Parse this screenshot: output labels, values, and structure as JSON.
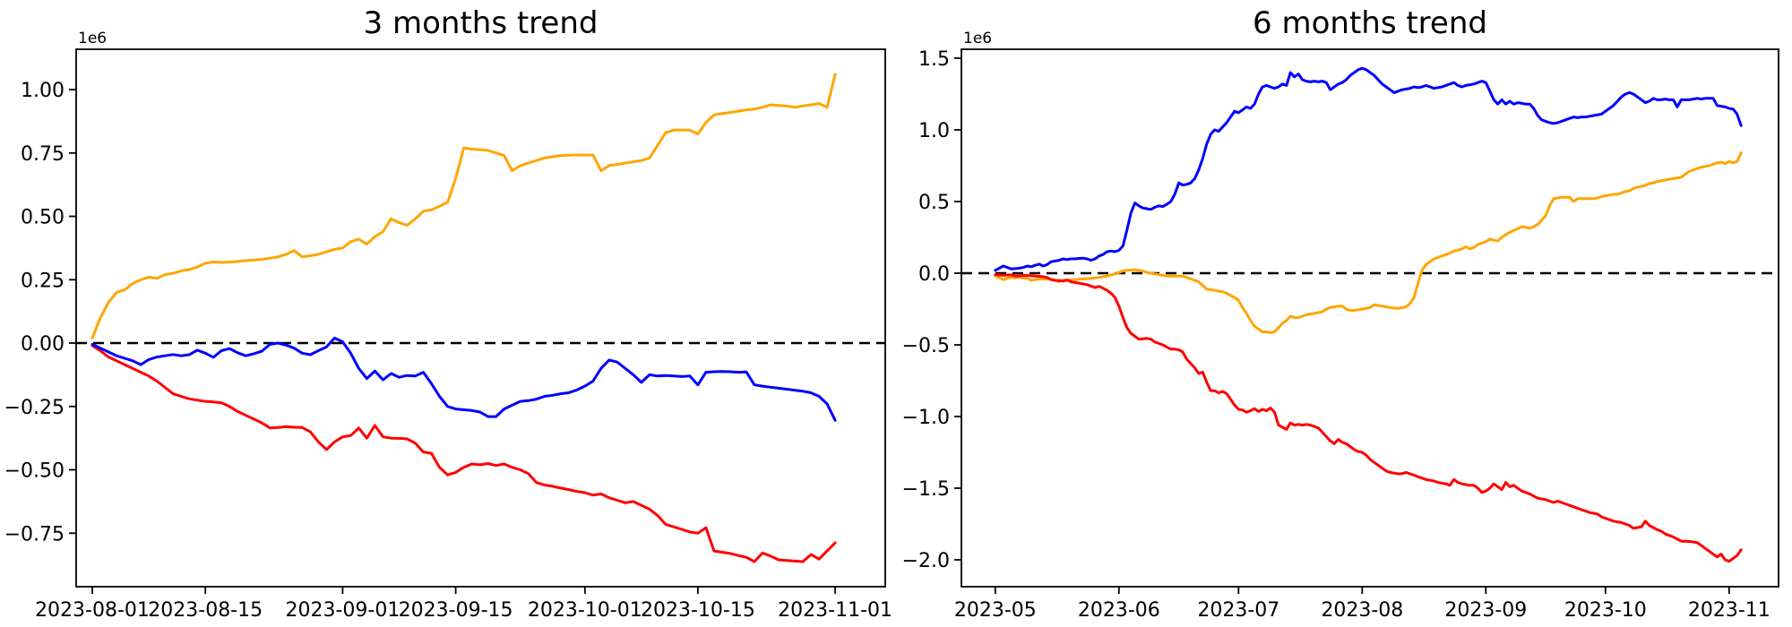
{
  "figure": {
    "background": "#ffffff",
    "text_color": "#000000"
  },
  "chart_data": [
    {
      "type": "line",
      "title": "3 months trend",
      "offset_text": "1e6",
      "xlabel": "",
      "ylabel": "",
      "grid": false,
      "legend": null,
      "xlim": [
        -2.0,
        98.2
      ],
      "ylim": [
        -0.961,
        1.159
      ],
      "x_tick_days": [
        0,
        14,
        31,
        45,
        61,
        75,
        92
      ],
      "x_tick_labels": [
        "2023-08-01",
        "2023-08-15",
        "2023-09-01",
        "2023-09-15",
        "2023-10-01",
        "2023-10-15",
        "2023-11-01"
      ],
      "y_tick_values": [
        1.0,
        0.75,
        0.5,
        0.25,
        0.0,
        -0.25,
        -0.5,
        -0.75
      ],
      "y_tick_labels": [
        "1.00",
        "0.75",
        "0.50",
        "0.25",
        "0.00",
        "−0.25",
        "−0.50",
        "−0.75"
      ],
      "zero_line": {
        "value": 0,
        "color": "#000000",
        "style": "dashed"
      },
      "series": [
        {
          "name": "orange",
          "color": "#ffa500",
          "x_start": 0,
          "x_step": 1,
          "values": [
            0.02,
            0.1,
            0.16,
            0.2,
            0.21,
            0.235,
            0.25,
            0.26,
            0.255,
            0.27,
            0.275,
            0.285,
            0.29,
            0.3,
            0.315,
            0.32,
            0.318,
            0.32,
            0.322,
            0.325,
            0.328,
            0.33,
            0.335,
            0.34,
            0.35,
            0.365,
            0.34,
            0.345,
            0.35,
            0.36,
            0.37,
            0.375,
            0.4,
            0.41,
            0.39,
            0.42,
            0.44,
            0.49,
            0.475,
            0.465,
            0.49,
            0.52,
            0.525,
            0.54,
            0.555,
            0.65,
            0.77,
            0.765,
            0.763,
            0.76,
            0.75,
            0.74,
            0.68,
            0.7,
            0.71,
            0.72,
            0.73,
            0.735,
            0.74,
            0.741,
            0.742,
            0.742,
            0.742,
            0.68,
            0.7,
            0.705,
            0.71,
            0.715,
            0.72,
            0.73,
            0.78,
            0.83,
            0.84,
            0.84,
            0.84,
            0.825,
            0.87,
            0.9,
            0.905,
            0.91,
            0.915,
            0.92,
            0.923,
            0.93,
            0.94,
            0.937,
            0.935,
            0.93,
            0.935,
            0.94,
            0.945,
            0.93,
            1.06
          ]
        },
        {
          "name": "red",
          "color": "#ff0000",
          "x_start": 0,
          "x_step": 1,
          "values": [
            -0.01,
            -0.03,
            -0.055,
            -0.07,
            -0.085,
            -0.1,
            -0.115,
            -0.13,
            -0.15,
            -0.175,
            -0.2,
            -0.21,
            -0.22,
            -0.225,
            -0.23,
            -0.232,
            -0.236,
            -0.25,
            -0.27,
            -0.285,
            -0.3,
            -0.315,
            -0.335,
            -0.333,
            -0.33,
            -0.332,
            -0.333,
            -0.35,
            -0.39,
            -0.42,
            -0.39,
            -0.37,
            -0.365,
            -0.335,
            -0.375,
            -0.325,
            -0.37,
            -0.375,
            -0.376,
            -0.378,
            -0.395,
            -0.43,
            -0.435,
            -0.49,
            -0.52,
            -0.51,
            -0.49,
            -0.477,
            -0.48,
            -0.475,
            -0.483,
            -0.477,
            -0.49,
            -0.5,
            -0.515,
            -0.55,
            -0.56,
            -0.565,
            -0.572,
            -0.578,
            -0.585,
            -0.59,
            -0.6,
            -0.595,
            -0.61,
            -0.62,
            -0.63,
            -0.625,
            -0.64,
            -0.655,
            -0.68,
            -0.715,
            -0.725,
            -0.735,
            -0.745,
            -0.75,
            -0.728,
            -0.82,
            -0.825,
            -0.83,
            -0.838,
            -0.845,
            -0.862,
            -0.828,
            -0.84,
            -0.855,
            -0.858,
            -0.86,
            -0.862,
            -0.834,
            -0.852,
            -0.82,
            -0.788
          ]
        },
        {
          "name": "blue",
          "color": "#0000ff",
          "x_start": 0,
          "x_step": 1,
          "values": [
            -0.005,
            -0.02,
            -0.035,
            -0.05,
            -0.06,
            -0.07,
            -0.085,
            -0.065,
            -0.055,
            -0.05,
            -0.045,
            -0.05,
            -0.046,
            -0.028,
            -0.04,
            -0.056,
            -0.03,
            -0.022,
            -0.038,
            -0.05,
            -0.042,
            -0.032,
            -0.005,
            0.0,
            -0.008,
            -0.02,
            -0.04,
            -0.046,
            -0.03,
            -0.015,
            0.02,
            0.005,
            -0.04,
            -0.1,
            -0.14,
            -0.11,
            -0.145,
            -0.12,
            -0.135,
            -0.128,
            -0.13,
            -0.115,
            -0.16,
            -0.21,
            -0.25,
            -0.26,
            -0.263,
            -0.266,
            -0.272,
            -0.29,
            -0.29,
            -0.26,
            -0.245,
            -0.23,
            -0.227,
            -0.221,
            -0.21,
            -0.206,
            -0.2,
            -0.196,
            -0.185,
            -0.17,
            -0.15,
            -0.1,
            -0.067,
            -0.075,
            -0.1,
            -0.125,
            -0.155,
            -0.125,
            -0.13,
            -0.128,
            -0.13,
            -0.132,
            -0.13,
            -0.165,
            -0.115,
            -0.113,
            -0.112,
            -0.113,
            -0.115,
            -0.114,
            -0.165,
            -0.17,
            -0.174,
            -0.178,
            -0.182,
            -0.186,
            -0.19,
            -0.196,
            -0.21,
            -0.24,
            -0.305
          ]
        }
      ]
    },
    {
      "type": "line",
      "title": "6 months trend",
      "offset_text": "1e6",
      "xlabel": "",
      "ylabel": "",
      "grid": false,
      "legend": null,
      "xlim": [
        -8.5,
        196.4
      ],
      "ylim": [
        -2.1875,
        1.5625
      ],
      "x_tick_days": [
        0,
        31,
        61,
        92,
        123,
        153,
        184
      ],
      "x_tick_labels": [
        "2023-05",
        "2023-06",
        "2023-07",
        "2023-08",
        "2023-09",
        "2023-10",
        "2023-11"
      ],
      "y_tick_values": [
        1.5,
        1.0,
        0.5,
        0.0,
        -0.5,
        -1.0,
        -1.5,
        -2.0
      ],
      "y_tick_labels": [
        "1.5",
        "1.0",
        "0.5",
        "0.0",
        "−0.5",
        "−1.0",
        "−1.5",
        "−2.0"
      ],
      "zero_line": {
        "value": 0,
        "color": "#000000",
        "style": "dashed"
      },
      "series": [
        {
          "name": "orange",
          "color": "#ffa500",
          "x_start": 0,
          "x_step": 1,
          "values": [
            -0.02,
            -0.03,
            -0.045,
            -0.035,
            -0.03,
            -0.032,
            -0.03,
            -0.033,
            -0.035,
            -0.05,
            -0.045,
            -0.04,
            -0.042,
            -0.04,
            -0.042,
            -0.05,
            -0.06,
            -0.05,
            -0.048,
            -0.047,
            -0.045,
            -0.042,
            -0.04,
            -0.038,
            -0.036,
            -0.033,
            -0.03,
            -0.025,
            -0.02,
            -0.012,
            -0.005,
            0.005,
            0.015,
            0.02,
            0.022,
            0.025,
            0.02,
            0.015,
            0.005,
            0.0,
            -0.005,
            -0.01,
            -0.015,
            -0.02,
            -0.02,
            -0.02,
            -0.02,
            -0.02,
            -0.03,
            -0.04,
            -0.05,
            -0.06,
            -0.085,
            -0.11,
            -0.115,
            -0.12,
            -0.125,
            -0.13,
            -0.14,
            -0.155,
            -0.17,
            -0.19,
            -0.24,
            -0.28,
            -0.33,
            -0.37,
            -0.39,
            -0.41,
            -0.41,
            -0.415,
            -0.41,
            -0.38,
            -0.35,
            -0.33,
            -0.3,
            -0.31,
            -0.31,
            -0.3,
            -0.29,
            -0.285,
            -0.28,
            -0.275,
            -0.27,
            -0.25,
            -0.24,
            -0.235,
            -0.23,
            -0.23,
            -0.25,
            -0.26,
            -0.26,
            -0.255,
            -0.25,
            -0.245,
            -0.24,
            -0.22,
            -0.225,
            -0.23,
            -0.235,
            -0.24,
            -0.243,
            -0.245,
            -0.242,
            -0.235,
            -0.21,
            -0.17,
            -0.07,
            0.02,
            0.06,
            0.08,
            0.1,
            0.11,
            0.12,
            0.13,
            0.14,
            0.155,
            0.16,
            0.17,
            0.185,
            0.17,
            0.18,
            0.2,
            0.21,
            0.22,
            0.238,
            0.23,
            0.225,
            0.25,
            0.27,
            0.285,
            0.3,
            0.31,
            0.325,
            0.32,
            0.313,
            0.325,
            0.34,
            0.37,
            0.4,
            0.47,
            0.52,
            0.525,
            0.53,
            0.53,
            0.53,
            0.5,
            0.52,
            0.52,
            0.52,
            0.52,
            0.52,
            0.525,
            0.535,
            0.54,
            0.545,
            0.55,
            0.55,
            0.56,
            0.57,
            0.575,
            0.59,
            0.6,
            0.605,
            0.613,
            0.625,
            0.63,
            0.64,
            0.645,
            0.65,
            0.655,
            0.66,
            0.665,
            0.67,
            0.69,
            0.71,
            0.72,
            0.73,
            0.74,
            0.745,
            0.75,
            0.76,
            0.77,
            0.775,
            0.765,
            0.78,
            0.77,
            0.78,
            0.84
          ]
        },
        {
          "name": "red",
          "color": "#ff0000",
          "x_start": 0,
          "x_step": 1,
          "values": [
            -0.01,
            -0.012,
            -0.015,
            -0.012,
            -0.012,
            -0.02,
            -0.018,
            -0.016,
            -0.015,
            -0.018,
            -0.02,
            -0.022,
            -0.025,
            -0.03,
            -0.045,
            -0.05,
            -0.052,
            -0.055,
            -0.047,
            -0.06,
            -0.065,
            -0.07,
            -0.075,
            -0.08,
            -0.09,
            -0.1,
            -0.092,
            -0.105,
            -0.12,
            -0.14,
            -0.17,
            -0.23,
            -0.31,
            -0.38,
            -0.42,
            -0.44,
            -0.46,
            -0.458,
            -0.455,
            -0.46,
            -0.48,
            -0.49,
            -0.5,
            -0.515,
            -0.53,
            -0.53,
            -0.535,
            -0.55,
            -0.6,
            -0.63,
            -0.66,
            -0.7,
            -0.69,
            -0.76,
            -0.82,
            -0.82,
            -0.835,
            -0.825,
            -0.84,
            -0.88,
            -0.92,
            -0.95,
            -0.955,
            -0.97,
            -0.96,
            -0.945,
            -0.965,
            -0.95,
            -0.96,
            -0.94,
            -0.97,
            -1.06,
            -1.075,
            -1.09,
            -1.045,
            -1.06,
            -1.055,
            -1.06,
            -1.055,
            -1.06,
            -1.07,
            -1.08,
            -1.11,
            -1.14,
            -1.17,
            -1.19,
            -1.16,
            -1.18,
            -1.19,
            -1.21,
            -1.23,
            -1.245,
            -1.25,
            -1.27,
            -1.3,
            -1.32,
            -1.34,
            -1.36,
            -1.38,
            -1.39,
            -1.395,
            -1.4,
            -1.398,
            -1.39,
            -1.4,
            -1.41,
            -1.42,
            -1.43,
            -1.44,
            -1.445,
            -1.45,
            -1.46,
            -1.465,
            -1.47,
            -1.48,
            -1.44,
            -1.46,
            -1.47,
            -1.475,
            -1.48,
            -1.48,
            -1.5,
            -1.53,
            -1.52,
            -1.5,
            -1.47,
            -1.49,
            -1.51,
            -1.46,
            -1.49,
            -1.48,
            -1.5,
            -1.52,
            -1.53,
            -1.54,
            -1.555,
            -1.57,
            -1.575,
            -1.58,
            -1.59,
            -1.6,
            -1.59,
            -1.6,
            -1.61,
            -1.62,
            -1.63,
            -1.64,
            -1.65,
            -1.66,
            -1.67,
            -1.675,
            -1.68,
            -1.7,
            -1.71,
            -1.72,
            -1.73,
            -1.735,
            -1.74,
            -1.75,
            -1.76,
            -1.78,
            -1.775,
            -1.77,
            -1.73,
            -1.76,
            -1.775,
            -1.79,
            -1.8,
            -1.82,
            -1.83,
            -1.84,
            -1.855,
            -1.87,
            -1.87,
            -1.872,
            -1.875,
            -1.88,
            -1.9,
            -1.92,
            -1.94,
            -1.96,
            -1.98,
            -1.96,
            -2.0,
            -2.01,
            -1.99,
            -1.97,
            -1.93
          ]
        },
        {
          "name": "blue",
          "color": "#0000ff",
          "x_start": 0,
          "x_step": 1,
          "values": [
            0.02,
            0.035,
            0.05,
            0.04,
            0.03,
            0.032,
            0.035,
            0.04,
            0.05,
            0.045,
            0.055,
            0.063,
            0.05,
            0.06,
            0.08,
            0.085,
            0.09,
            0.1,
            0.095,
            0.1,
            0.1,
            0.103,
            0.105,
            0.1,
            0.09,
            0.1,
            0.12,
            0.13,
            0.15,
            0.155,
            0.15,
            0.16,
            0.19,
            0.3,
            0.42,
            0.49,
            0.47,
            0.455,
            0.45,
            0.445,
            0.46,
            0.47,
            0.465,
            0.48,
            0.5,
            0.55,
            0.63,
            0.615,
            0.62,
            0.63,
            0.66,
            0.72,
            0.8,
            0.9,
            0.97,
            1.0,
            0.99,
            1.02,
            1.05,
            1.09,
            1.13,
            1.12,
            1.14,
            1.16,
            1.15,
            1.18,
            1.25,
            1.3,
            1.31,
            1.3,
            1.29,
            1.3,
            1.32,
            1.31,
            1.4,
            1.37,
            1.39,
            1.35,
            1.34,
            1.335,
            1.34,
            1.335,
            1.34,
            1.33,
            1.28,
            1.3,
            1.32,
            1.33,
            1.35,
            1.38,
            1.4,
            1.42,
            1.43,
            1.42,
            1.4,
            1.38,
            1.35,
            1.32,
            1.3,
            1.28,
            1.26,
            1.27,
            1.28,
            1.285,
            1.29,
            1.3,
            1.295,
            1.3,
            1.31,
            1.3,
            1.29,
            1.295,
            1.3,
            1.31,
            1.32,
            1.33,
            1.31,
            1.3,
            1.31,
            1.315,
            1.32,
            1.33,
            1.34,
            1.33,
            1.27,
            1.21,
            1.18,
            1.21,
            1.18,
            1.2,
            1.18,
            1.19,
            1.185,
            1.18,
            1.18,
            1.15,
            1.1,
            1.07,
            1.06,
            1.05,
            1.045,
            1.05,
            1.06,
            1.07,
            1.08,
            1.09,
            1.085,
            1.09,
            1.09,
            1.095,
            1.1,
            1.105,
            1.11,
            1.13,
            1.15,
            1.17,
            1.2,
            1.23,
            1.25,
            1.26,
            1.25,
            1.23,
            1.21,
            1.19,
            1.2,
            1.22,
            1.21,
            1.21,
            1.215,
            1.21,
            1.21,
            1.16,
            1.21,
            1.21,
            1.21,
            1.215,
            1.22,
            1.215,
            1.22,
            1.22,
            1.22,
            1.17,
            1.165,
            1.16,
            1.15,
            1.145,
            1.11,
            1.03
          ]
        }
      ]
    }
  ]
}
